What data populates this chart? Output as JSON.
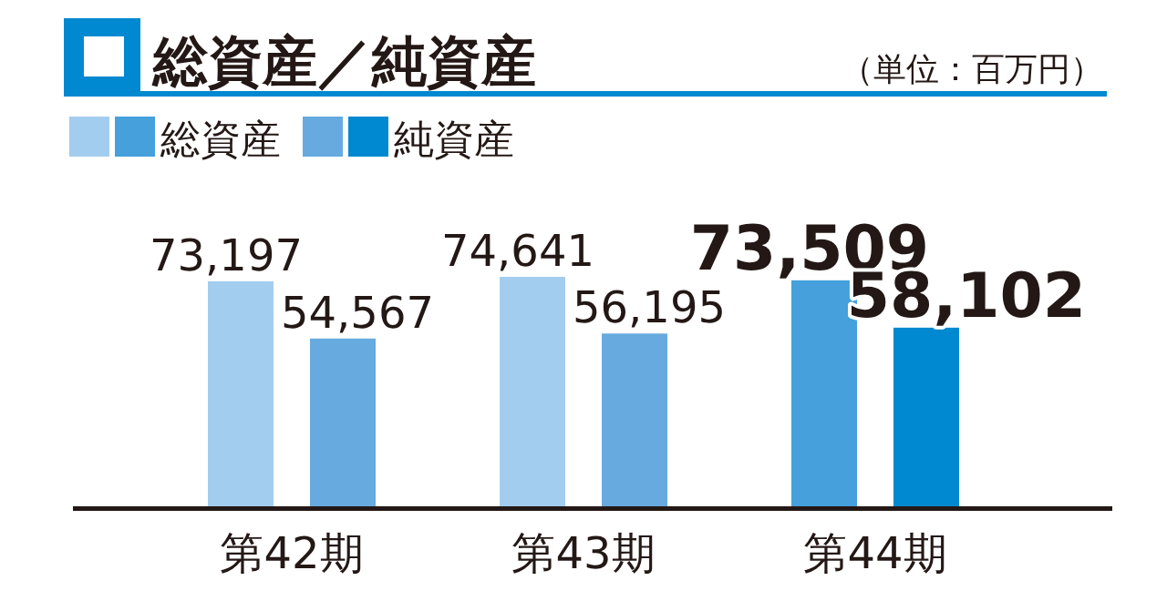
{
  "chart_data": {
    "type": "bar",
    "title": "総資産／純資産",
    "annotations": [
      "（単位：百万円）"
    ],
    "categories": [
      "第42期",
      "第43期",
      "第44期"
    ],
    "series": [
      {
        "name": "総資産",
        "colors": [
          "#a3cdee",
          "#a3cdee",
          "#45a0dc"
        ],
        "values": [
          73197,
          74641,
          73509
        ],
        "value_labels": [
          "73,197",
          "74,641",
          "73,509"
        ]
      },
      {
        "name": "純資産",
        "colors": [
          "#66aadf",
          "#66aadf",
          "#0089d0"
        ],
        "values": [
          54567,
          56195,
          58102
        ],
        "value_labels": [
          "54,567",
          "56,195",
          "58,102"
        ]
      }
    ],
    "legend": "top left"
  }
}
